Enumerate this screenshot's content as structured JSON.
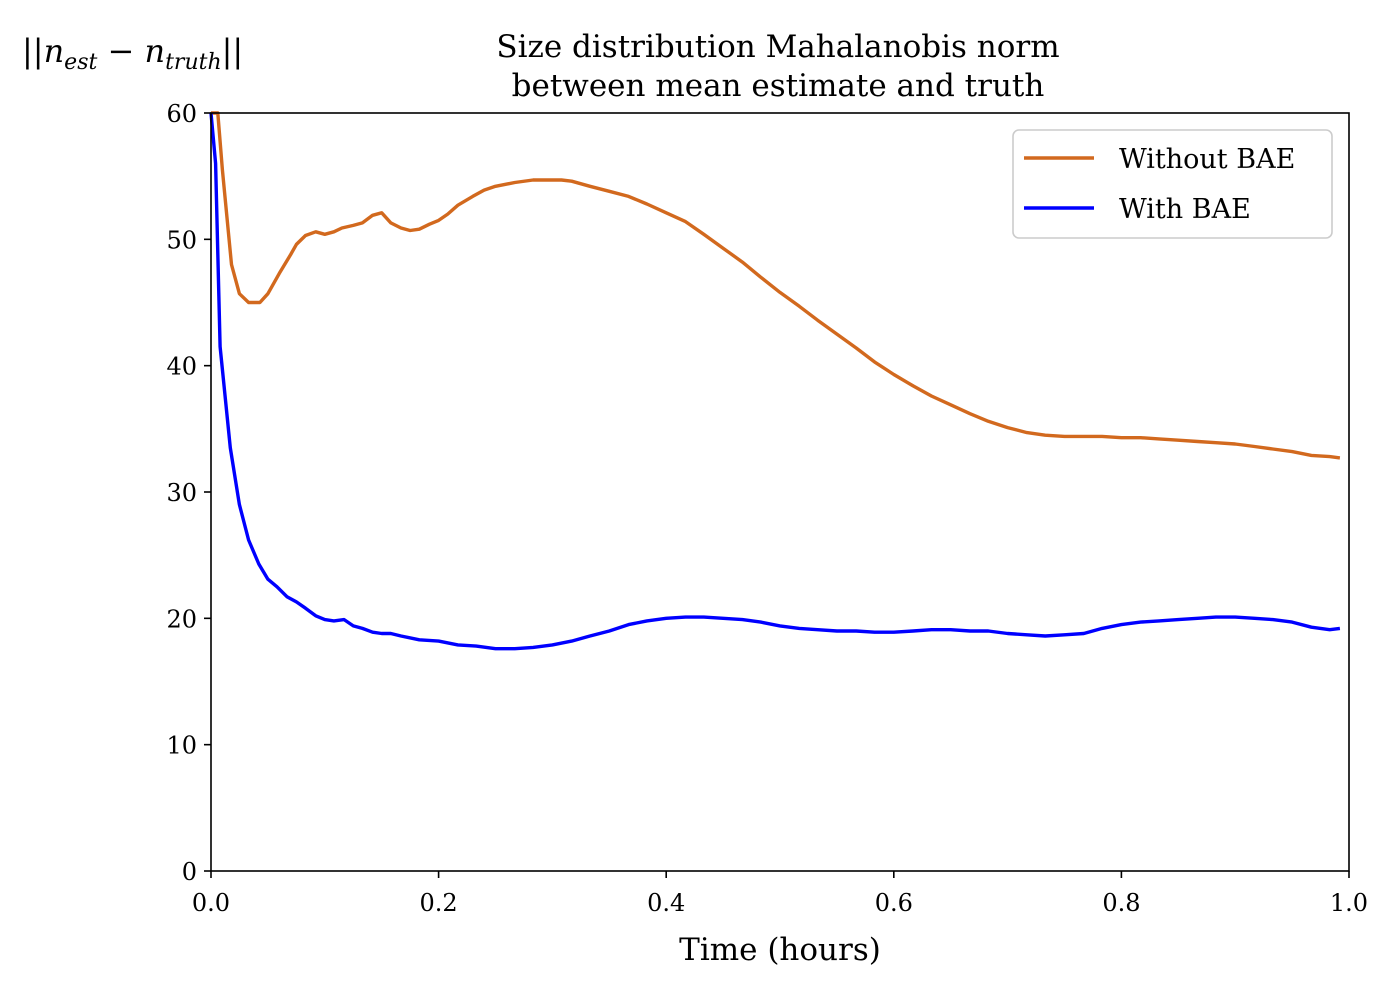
{
  "chart_data": {
    "type": "line",
    "title_line1": "Size distribution Mahalanobis norm",
    "title_line2": "between mean estimate and truth",
    "ylabel": "||n_est − n_truth||",
    "ylabel_parts": {
      "bars_left": "||",
      "n1": "n",
      "sub1": "est",
      "minus": " − ",
      "n2": "n",
      "sub2": "truth",
      "bars_right": "||"
    },
    "xlabel": "Time (hours)",
    "xlim": [
      0.0,
      1.0
    ],
    "ylim": [
      0,
      60
    ],
    "xticks": [
      "0.0",
      "0.2",
      "0.4",
      "0.6",
      "0.8",
      "1.0"
    ],
    "yticks": [
      "0",
      "10",
      "20",
      "30",
      "40",
      "50",
      "60"
    ],
    "grid": false,
    "legend_position": "top-right",
    "series": [
      {
        "name": "Without BAE",
        "color": "#d2691e",
        "x": [
          0.0,
          0.006,
          0.01,
          0.018,
          0.025,
          0.033,
          0.043,
          0.05,
          0.06,
          0.07,
          0.075,
          0.083,
          0.092,
          0.1,
          0.108,
          0.115,
          0.125,
          0.133,
          0.142,
          0.15,
          0.158,
          0.167,
          0.175,
          0.183,
          0.192,
          0.2,
          0.208,
          0.217,
          0.23,
          0.24,
          0.25,
          0.267,
          0.283,
          0.3,
          0.308,
          0.317,
          0.333,
          0.35,
          0.367,
          0.383,
          0.4,
          0.417,
          0.433,
          0.45,
          0.467,
          0.483,
          0.5,
          0.517,
          0.533,
          0.55,
          0.567,
          0.583,
          0.6,
          0.617,
          0.633,
          0.65,
          0.667,
          0.683,
          0.7,
          0.717,
          0.733,
          0.75,
          0.767,
          0.783,
          0.8,
          0.817,
          0.833,
          0.85,
          0.867,
          0.883,
          0.9,
          0.917,
          0.933,
          0.95,
          0.967,
          0.983,
          0.992
        ],
        "y": [
          60.0,
          60.0,
          55.5,
          48.0,
          45.7,
          45.0,
          45.0,
          45.7,
          47.3,
          48.8,
          49.6,
          50.3,
          50.6,
          50.4,
          50.6,
          50.9,
          51.1,
          51.3,
          51.9,
          52.1,
          51.3,
          50.9,
          50.7,
          50.8,
          51.2,
          51.5,
          52.0,
          52.7,
          53.4,
          53.9,
          54.2,
          54.5,
          54.7,
          54.7,
          54.7,
          54.6,
          54.2,
          53.8,
          53.4,
          52.8,
          52.1,
          51.4,
          50.4,
          49.3,
          48.2,
          47.0,
          45.8,
          44.7,
          43.6,
          42.5,
          41.4,
          40.3,
          39.3,
          38.4,
          37.6,
          36.9,
          36.2,
          35.6,
          35.1,
          34.7,
          34.5,
          34.4,
          34.4,
          34.4,
          34.3,
          34.3,
          34.2,
          34.1,
          34.0,
          33.9,
          33.8,
          33.6,
          33.4,
          33.2,
          32.9,
          32.8,
          32.7
        ]
      },
      {
        "name": "With BAE",
        "color": "#0000ff",
        "x": [
          0.0,
          0.004,
          0.008,
          0.017,
          0.025,
          0.033,
          0.042,
          0.05,
          0.058,
          0.067,
          0.075,
          0.083,
          0.092,
          0.1,
          0.108,
          0.117,
          0.125,
          0.133,
          0.142,
          0.15,
          0.158,
          0.167,
          0.183,
          0.2,
          0.217,
          0.233,
          0.25,
          0.267,
          0.283,
          0.3,
          0.317,
          0.333,
          0.35,
          0.367,
          0.383,
          0.4,
          0.417,
          0.433,
          0.45,
          0.467,
          0.483,
          0.5,
          0.517,
          0.533,
          0.55,
          0.567,
          0.583,
          0.6,
          0.617,
          0.633,
          0.65,
          0.667,
          0.683,
          0.7,
          0.717,
          0.733,
          0.75,
          0.767,
          0.783,
          0.8,
          0.817,
          0.833,
          0.85,
          0.867,
          0.883,
          0.9,
          0.917,
          0.933,
          0.95,
          0.967,
          0.983,
          0.992
        ],
        "y": [
          60.0,
          56.0,
          41.5,
          33.5,
          29.0,
          26.2,
          24.3,
          23.1,
          22.5,
          21.7,
          21.3,
          20.8,
          20.2,
          19.9,
          19.8,
          19.9,
          19.4,
          19.2,
          18.9,
          18.8,
          18.8,
          18.6,
          18.3,
          18.2,
          17.9,
          17.8,
          17.6,
          17.6,
          17.7,
          17.9,
          18.2,
          18.6,
          19.0,
          19.5,
          19.8,
          20.0,
          20.1,
          20.1,
          20.0,
          19.9,
          19.7,
          19.4,
          19.2,
          19.1,
          19.0,
          19.0,
          18.9,
          18.9,
          19.0,
          19.1,
          19.1,
          19.0,
          19.0,
          18.8,
          18.7,
          18.6,
          18.7,
          18.8,
          19.2,
          19.5,
          19.7,
          19.8,
          19.9,
          20.0,
          20.1,
          20.1,
          20.0,
          19.9,
          19.7,
          19.3,
          19.1,
          19.2
        ]
      }
    ]
  }
}
